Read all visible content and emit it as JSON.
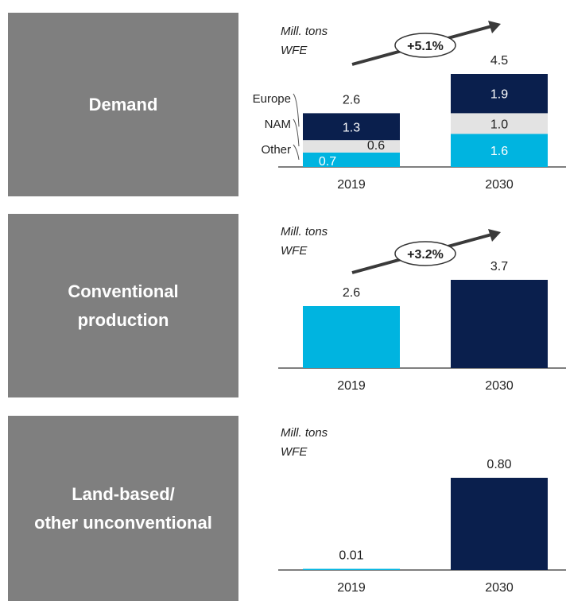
{
  "panels": [
    {
      "label": "Demand"
    },
    {
      "label": "Conventional\nproduction"
    },
    {
      "label": "Land-based/\nother unconventional"
    }
  ],
  "colors": {
    "navy": "#0a1f4d",
    "cyan": "#00b4e0",
    "grey": "#e3e3e3",
    "panel": "#7f7f7f"
  },
  "chart_data": [
    {
      "type": "bar",
      "stacked": true,
      "title": "Demand",
      "unit_label": [
        "Mill. tons",
        "WFE"
      ],
      "categories": [
        "2019",
        "2030"
      ],
      "series": [
        {
          "name": "Other",
          "values": [
            0.7,
            1.6
          ],
          "labels": [
            "0.7",
            "1.6"
          ]
        },
        {
          "name": "NAM",
          "values": [
            0.6,
            1.0
          ],
          "labels": [
            "0.6",
            "1.0"
          ]
        },
        {
          "name": "Europe",
          "values": [
            1.3,
            1.9
          ],
          "labels": [
            "1.3",
            "1.9"
          ]
        }
      ],
      "totals": [
        "2.6",
        "4.5"
      ],
      "growth": "+5.1%",
      "ylim": [
        0,
        4.5
      ]
    },
    {
      "type": "bar",
      "title": "Conventional production",
      "unit_label": [
        "Mill. tons",
        "WFE"
      ],
      "categories": [
        "2019",
        "2030"
      ],
      "values": [
        2.6,
        3.7
      ],
      "labels": [
        "2.6",
        "3.7"
      ],
      "growth": "+3.2%",
      "ylim": [
        0,
        3.7
      ]
    },
    {
      "type": "bar",
      "title": "Land-based/other unconventional",
      "unit_label": [
        "Mill. tons",
        "WFE"
      ],
      "categories": [
        "2019",
        "2030"
      ],
      "values": [
        0.01,
        0.8
      ],
      "labels": [
        "0.01",
        "0.80"
      ],
      "ylim": [
        0,
        0.8
      ]
    }
  ]
}
